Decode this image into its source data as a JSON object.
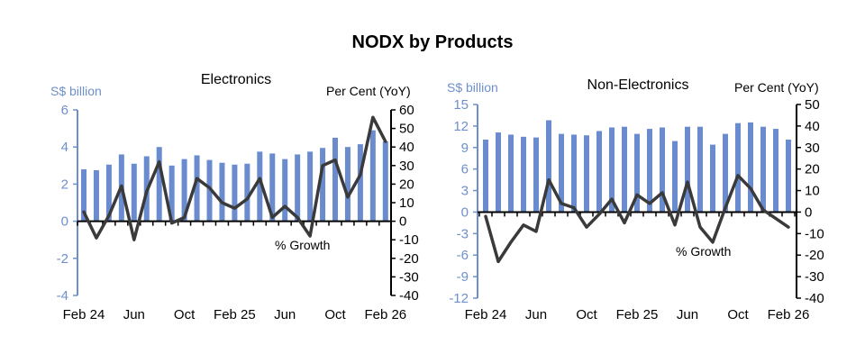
{
  "title": "NODX by Products",
  "chart_data": [
    {
      "type": "bar",
      "title": "Electronics",
      "ylabel": "S$ billion",
      "y2label": "Per Cent (YoY)",
      "line_label": "% Growth",
      "ylim": [
        -4,
        6
      ],
      "yticks": [
        -4,
        -2,
        0,
        2,
        4,
        6
      ],
      "y2lim": [
        -40,
        60
      ],
      "y2ticks": [
        -40,
        -30,
        -20,
        -10,
        0,
        10,
        20,
        30,
        40,
        50,
        60
      ],
      "x_tick_labels": [
        {
          "index": 0,
          "label": "Feb 24"
        },
        {
          "index": 4,
          "label": "Jun"
        },
        {
          "index": 8,
          "label": "Oct"
        },
        {
          "index": 12,
          "label": "Feb 25"
        },
        {
          "index": 16,
          "label": "Jun"
        },
        {
          "index": 20,
          "label": "Oct"
        },
        {
          "index": 24,
          "label": "Feb 26"
        }
      ],
      "series": [
        {
          "name": "S$ billion",
          "kind": "bar",
          "color": "#6a8ccf",
          "values": [
            2.8,
            2.75,
            3.05,
            3.6,
            3.1,
            3.5,
            4.0,
            3.0,
            3.35,
            3.55,
            3.3,
            3.15,
            3.05,
            3.1,
            3.75,
            3.65,
            3.35,
            3.6,
            3.75,
            3.95,
            4.5,
            4.0,
            4.15,
            4.9,
            4.3
          ]
        },
        {
          "name": "% Growth",
          "kind": "line",
          "axis": "right",
          "color": "#3a3a3a",
          "values": [
            5,
            -9,
            3,
            19,
            -10,
            16,
            32,
            -1,
            2,
            23,
            18,
            10,
            7,
            12,
            23,
            2,
            8,
            2,
            -8,
            30,
            33,
            13,
            25,
            56,
            43
          ]
        }
      ]
    },
    {
      "type": "bar",
      "title": "Non-Electronics",
      "ylabel": "S$ billion",
      "y2label": "Per Cent (YoY)",
      "line_label": "% Growth",
      "ylim": [
        -12,
        15
      ],
      "yticks": [
        -12,
        -9,
        -6,
        -3,
        0,
        3,
        6,
        9,
        12,
        15
      ],
      "y2lim": [
        -40,
        50
      ],
      "y2ticks": [
        -40,
        -30,
        -20,
        -10,
        0,
        10,
        20,
        30,
        40,
        50
      ],
      "x_tick_labels": [
        {
          "index": 0,
          "label": "Feb 24"
        },
        {
          "index": 4,
          "label": "Jun"
        },
        {
          "index": 8,
          "label": "Oct"
        },
        {
          "index": 12,
          "label": "Feb 25"
        },
        {
          "index": 16,
          "label": "Jun"
        },
        {
          "index": 20,
          "label": "Oct"
        },
        {
          "index": 24,
          "label": "Feb 26"
        }
      ],
      "series": [
        {
          "name": "S$ billion",
          "kind": "bar",
          "color": "#6a8ccf",
          "values": [
            10.1,
            11.1,
            10.8,
            10.5,
            10.4,
            12.8,
            10.9,
            10.8,
            10.7,
            11.3,
            11.8,
            11.9,
            10.9,
            11.6,
            11.8,
            9.9,
            11.9,
            11.9,
            9.4,
            10.9,
            12.4,
            12.5,
            11.9,
            11.6,
            10.1
          ]
        },
        {
          "name": "% Growth",
          "kind": "line",
          "axis": "right",
          "color": "#3a3a3a",
          "values": [
            -2,
            -23,
            -14,
            -6,
            -9,
            15,
            4,
            2,
            -7,
            -1,
            6,
            -5,
            8,
            4,
            9,
            -6,
            14,
            -7,
            -14,
            2,
            17,
            11,
            1,
            -3,
            -7
          ]
        }
      ]
    }
  ]
}
